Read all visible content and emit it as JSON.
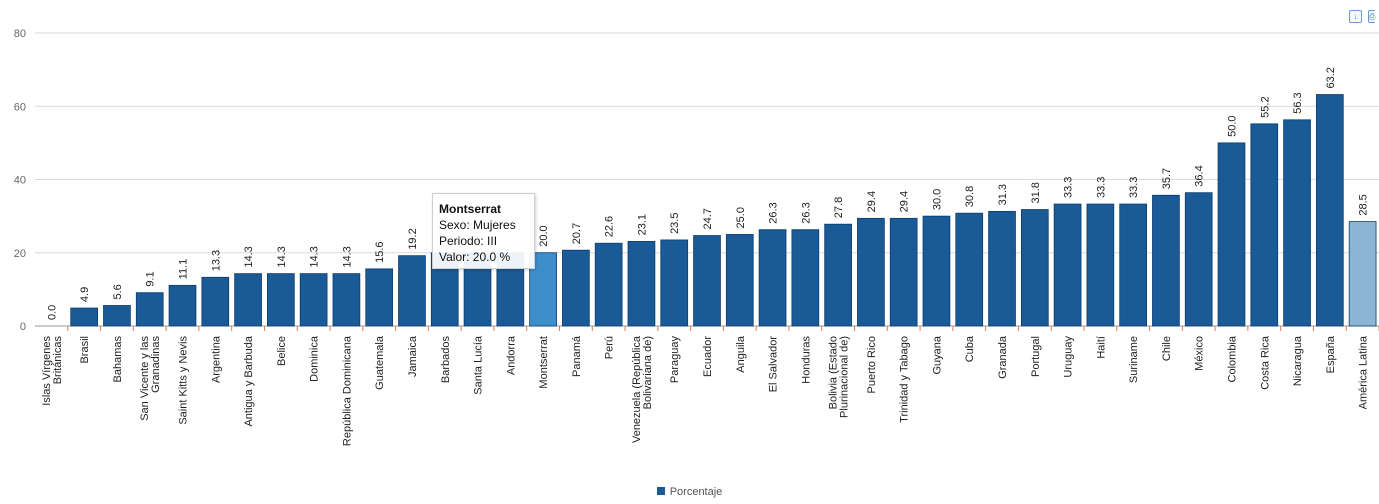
{
  "chart_data": {
    "type": "bar",
    "categories": [
      "Islas Vírgenes Británicas",
      "Brasil",
      "Bahamas",
      "San Vicente y las Granadinas",
      "Saint Kitts y Nevis",
      "Argentina",
      "Antigua y Barbuda",
      "Belice",
      "Dominica",
      "República Dominicana",
      "Guatemala",
      "Jamaica",
      "Barbados",
      "Santa Lucía",
      "Andorra",
      "Montserrat",
      "Panamá",
      "Perú",
      "Venezuela (República Bolivariana de)",
      "Paraguay",
      "Ecuador",
      "Anguila",
      "El Salvador",
      "Honduras",
      "Bolivia (Estado Plurinacional de)",
      "Puerto Rico",
      "Trinidad y Tabago",
      "Guyana",
      "Cuba",
      "Granada",
      "Portugal",
      "Uruguay",
      "Haití",
      "Suriname",
      "Chile",
      "México",
      "Colombia",
      "Costa Rica",
      "Nicaragua",
      "España",
      "América Latina"
    ],
    "category_lines": [
      [
        "Islas Vírgenes",
        "Británicas"
      ],
      [
        "Brasil"
      ],
      [
        "Bahamas"
      ],
      [
        "San Vicente y las",
        "Granadinas"
      ],
      [
        "Saint Kitts y Nevis"
      ],
      [
        "Argentina"
      ],
      [
        "Antigua y Barbuda"
      ],
      [
        "Belice"
      ],
      [
        "Dominica"
      ],
      [
        "República Dominicana"
      ],
      [
        "Guatemala"
      ],
      [
        "Jamaica"
      ],
      [
        "Barbados"
      ],
      [
        "Santa Lucía"
      ],
      [
        "Andorra"
      ],
      [
        "Montserrat"
      ],
      [
        "Panamá"
      ],
      [
        "Perú"
      ],
      [
        "Venezuela (República",
        "Bolivariana de)"
      ],
      [
        "Paraguay"
      ],
      [
        "Ecuador"
      ],
      [
        "Anguila"
      ],
      [
        "El Salvador"
      ],
      [
        "Honduras"
      ],
      [
        "Bolivia (Estado",
        "Plurinacional de)"
      ],
      [
        "Puerto Rico"
      ],
      [
        "Trinidad y Tabago"
      ],
      [
        "Guyana"
      ],
      [
        "Cuba"
      ],
      [
        "Granada"
      ],
      [
        "Portugal"
      ],
      [
        "Uruguay"
      ],
      [
        "Haití"
      ],
      [
        "Suriname"
      ],
      [
        "Chile"
      ],
      [
        "México"
      ],
      [
        "Colombia"
      ],
      [
        "Costa Rica"
      ],
      [
        "Nicaragua"
      ],
      [
        "España"
      ],
      [
        "América Latina"
      ]
    ],
    "series": [
      {
        "name": "Porcentaje",
        "values": [
          0.0,
          4.9,
          5.6,
          9.1,
          11.1,
          13.3,
          14.3,
          14.3,
          14.3,
          14.3,
          15.6,
          19.2,
          20.0,
          20.0,
          20.0,
          20.0,
          20.7,
          22.6,
          23.1,
          23.5,
          24.7,
          25.0,
          26.3,
          26.3,
          27.8,
          29.4,
          29.4,
          30.0,
          30.8,
          31.3,
          31.8,
          33.3,
          33.3,
          33.3,
          35.7,
          36.4,
          50.0,
          55.2,
          56.3,
          63.2,
          28.5
        ],
        "labels": [
          "0.0",
          "4.9",
          "5.6",
          "9.1",
          "11.1",
          "13.3",
          "14.3",
          "14.3",
          "14.3",
          "14.3",
          "15.6",
          "19.2",
          "",
          "",
          "",
          "20.0",
          "20.7",
          "22.6",
          "23.1",
          "23.5",
          "24.7",
          "25.0",
          "26.3",
          "26.3",
          "27.8",
          "29.4",
          "29.4",
          "30.0",
          "30.8",
          "31.3",
          "31.8",
          "33.3",
          "33.3",
          "33.3",
          "35.7",
          "36.4",
          "50.0",
          "55.2",
          "56.3",
          "63.2",
          "28.5"
        ]
      }
    ],
    "highlight_index": 15,
    "regional_index": 40,
    "ylim": [
      0,
      80
    ],
    "yticks": [
      "0",
      "20",
      "40",
      "60",
      "80"
    ],
    "grid": true,
    "legend_position": "bottom-center",
    "colors": {
      "bar": "#1a5a96",
      "hover": "#3d8fcc",
      "regional": "#8cb4d3",
      "bar_border": "#0d3d6b"
    }
  },
  "tooltip": {
    "title": "Montserrat",
    "line1": "Sexo: Mujeres",
    "line2": "Periodo: III",
    "line3": "Valor: 20.0 %"
  },
  "legend": {
    "label": "Porcentaje"
  },
  "toolbar": {
    "icons": [
      "download-icon",
      "print-icon"
    ]
  }
}
